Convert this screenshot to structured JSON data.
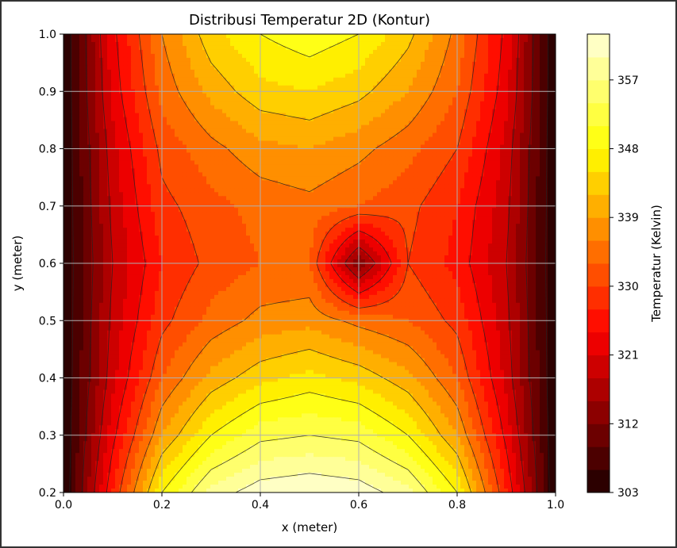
{
  "chart_data": {
    "type": "contour",
    "title": "Distribusi Temperatur 2D (Kontur)",
    "xlabel": "x (meter)",
    "ylabel": "y (meter)",
    "colorbar_label": "Temperatur (Kelvin)",
    "colormap": "hot",
    "grid": true,
    "xlim": [
      0.0,
      1.0
    ],
    "ylim": [
      0.2,
      1.0
    ],
    "x_ticks": [
      "0.0",
      "0.2",
      "0.4",
      "0.6",
      "0.8",
      "1.0"
    ],
    "y_ticks": [
      "0.2",
      "0.3",
      "0.4",
      "0.5",
      "0.6",
      "0.7",
      "0.8",
      "0.9",
      "1.0"
    ],
    "colorbar_range": [
      303,
      363
    ],
    "colorbar_ticks": [
      303,
      312,
      321,
      330,
      339,
      348,
      357
    ],
    "x": [
      0.0,
      0.1,
      0.2,
      0.3,
      0.4,
      0.5,
      0.6,
      0.7,
      0.8,
      0.9,
      1.0
    ],
    "y": [
      0.2,
      0.3,
      0.4,
      0.5,
      0.6,
      0.7,
      0.8,
      0.9,
      1.0
    ],
    "temperature_rows": [
      [
        303,
        327,
        348,
        358,
        362,
        363,
        362,
        358,
        348,
        327,
        303
      ],
      [
        303,
        323,
        339,
        348,
        353,
        354,
        353,
        348,
        339,
        323,
        303
      ],
      [
        303,
        320,
        333,
        340,
        344,
        346,
        344,
        340,
        333,
        320,
        303
      ],
      [
        303,
        319,
        329,
        334,
        337,
        338,
        335,
        333,
        329,
        319,
        303
      ],
      [
        303,
        318,
        327,
        331,
        333,
        333,
        312,
        330,
        326,
        318,
        303
      ],
      [
        303,
        319,
        329,
        332,
        334,
        335,
        333,
        331,
        327,
        319,
        303
      ],
      [
        303,
        320,
        331,
        335,
        338,
        339,
        337,
        334,
        330,
        320,
        303
      ],
      [
        303,
        322,
        334,
        340,
        344,
        345,
        343,
        339,
        333,
        322,
        303
      ],
      [
        303,
        323,
        336,
        344,
        348,
        350,
        348,
        343,
        335,
        323,
        303
      ]
    ]
  }
}
